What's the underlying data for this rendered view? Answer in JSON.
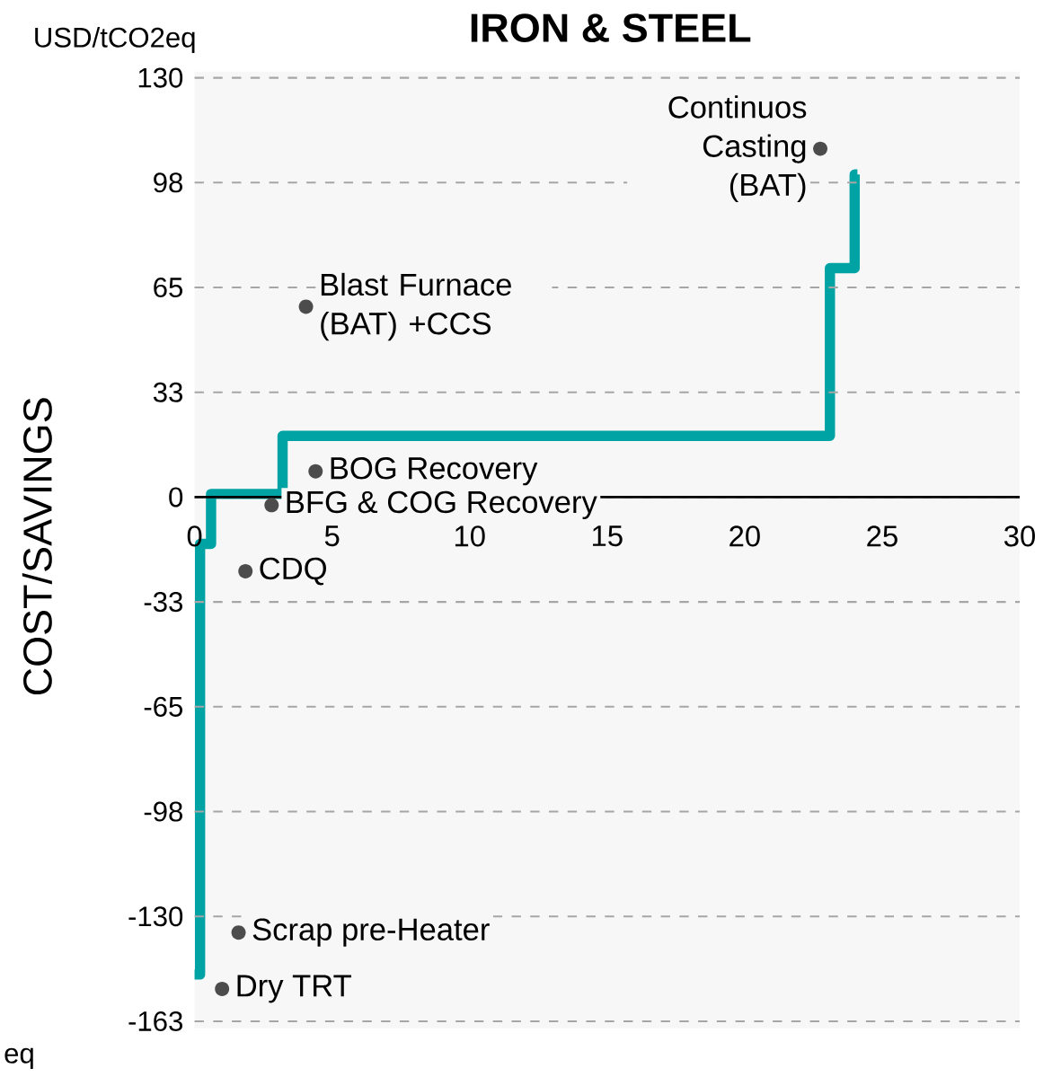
{
  "chart_data": {
    "type": "step",
    "title": "IRON & STEEL",
    "ylabel": "COST/SAVINGS",
    "x": [
      0,
      0.2,
      0.6,
      3.2,
      23.1,
      24.0,
      24.1
    ],
    "values": [
      -148,
      -14.5,
      1,
      19,
      71,
      100,
      100
    ],
    "color": "#00a3a3",
    "xlim": [
      0,
      30
    ],
    "xticks": [
      0,
      5,
      10,
      15,
      20,
      25,
      30
    ],
    "ylim": [
      -162.5,
      130
    ],
    "yticks": [
      {
        "value": -162.5,
        "label": "-163"
      },
      {
        "value": -130,
        "label": "-130"
      },
      {
        "value": -97.5,
        "label": "-98"
      },
      {
        "value": -65,
        "label": "-65"
      },
      {
        "value": -32.5,
        "label": "-33"
      },
      0,
      {
        "value": 32.5,
        "label": "33"
      },
      65,
      {
        "value": 97.5,
        "label": "98"
      },
      130
    ],
    "grid": "y",
    "annotations": [
      "USD/tCO2eq",
      {
        "text": "Continuos Casting (BAT)",
        "x": 22.75,
        "y": 108
      },
      {
        "text": "Blast Furnace (BAT) +CCS",
        "x": 4.05,
        "y": 59
      },
      {
        "text": "BOG Recovery",
        "x": 4.4,
        "y": 8
      },
      {
        "text": "BFG & COG Recovery",
        "x": 2.8,
        "y": -2.5
      },
      {
        "text": "CDQ",
        "x": 1.85,
        "y": -23
      },
      {
        "text": "Scrap pre-Heater",
        "x": 1.6,
        "y": -135
      },
      {
        "text": "Dry TRT",
        "x": 1.0,
        "y": -152.5
      },
      "eq"
    ]
  }
}
